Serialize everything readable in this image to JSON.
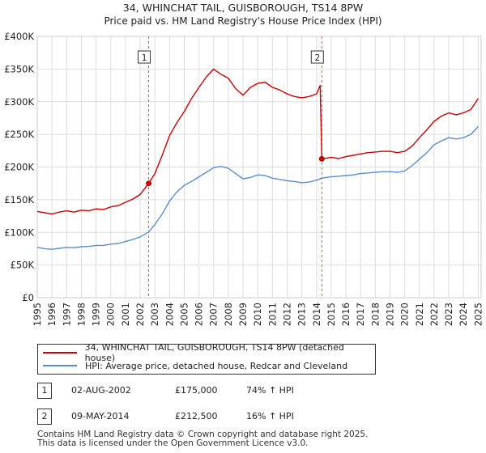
{
  "chart_data": {
    "type": "line",
    "title": "34, WHINCHAT TAIL, GUISBOROUGH, TS14 8PW",
    "subtitle": "Price paid vs. HM Land Registry's House Price Index (HPI)",
    "xlim": [
      1995,
      2025.2
    ],
    "ylim": [
      0,
      400000
    ],
    "y_ticks": [
      0,
      50000,
      100000,
      150000,
      200000,
      250000,
      300000,
      350000,
      400000
    ],
    "y_tick_labels": [
      "£0",
      "£50K",
      "£100K",
      "£150K",
      "£200K",
      "£250K",
      "£300K",
      "£350K",
      "£400K"
    ],
    "x_ticks": [
      1995,
      1996,
      1997,
      1998,
      1999,
      2000,
      2001,
      2002,
      2003,
      2004,
      2005,
      2006,
      2007,
      2008,
      2009,
      2010,
      2011,
      2012,
      2013,
      2014,
      2015,
      2016,
      2017,
      2018,
      2019,
      2020,
      2021,
      2022,
      2023,
      2024,
      2025
    ],
    "x_tick_labels": [
      "1995",
      "1996",
      "1997",
      "1998",
      "1999",
      "2000",
      "2001",
      "2002",
      "2003",
      "2004",
      "2005",
      "2006",
      "2007",
      "2008",
      "2009",
      "2010",
      "2011",
      "2012",
      "2013",
      "2014",
      "2015",
      "2016",
      "2017",
      "2018",
      "2019",
      "2020",
      "2021",
      "2022",
      "2023",
      "2024",
      "2025"
    ],
    "grid": true,
    "series": [
      {
        "name": "34, WHINCHAT TAIL, GUISBOROUGH, TS14 8PW (detached house)",
        "color": "#cc0000",
        "points": [
          [
            1995,
            132000
          ],
          [
            1995.5,
            130000
          ],
          [
            1996,
            128000
          ],
          [
            1996.5,
            131000
          ],
          [
            1997,
            133000
          ],
          [
            1997.5,
            131000
          ],
          [
            1998,
            134000
          ],
          [
            1998.5,
            133000
          ],
          [
            1999,
            136000
          ],
          [
            1999.5,
            135000
          ],
          [
            2000,
            139000
          ],
          [
            2000.5,
            141000
          ],
          [
            2001,
            146000
          ],
          [
            2001.5,
            151000
          ],
          [
            2002,
            158000
          ],
          [
            2002.58,
            175000
          ],
          [
            2003,
            190000
          ],
          [
            2003.5,
            218000
          ],
          [
            2004,
            248000
          ],
          [
            2004.5,
            268000
          ],
          [
            2005,
            285000
          ],
          [
            2005.5,
            305000
          ],
          [
            2006,
            322000
          ],
          [
            2006.5,
            338000
          ],
          [
            2007,
            350000
          ],
          [
            2007.5,
            342000
          ],
          [
            2008,
            336000
          ],
          [
            2008.5,
            320000
          ],
          [
            2009,
            310000
          ],
          [
            2009.5,
            322000
          ],
          [
            2010,
            328000
          ],
          [
            2010.5,
            330000
          ],
          [
            2011,
            322000
          ],
          [
            2011.5,
            318000
          ],
          [
            2012,
            312000
          ],
          [
            2012.5,
            308000
          ],
          [
            2013,
            306000
          ],
          [
            2013.5,
            308000
          ],
          [
            2014,
            312000
          ],
          [
            2014.25,
            325000
          ],
          [
            2014.36,
            212500
          ],
          [
            2015,
            215000
          ],
          [
            2015.5,
            213000
          ],
          [
            2016,
            216000
          ],
          [
            2016.5,
            218000
          ],
          [
            2017,
            220000
          ],
          [
            2017.5,
            222000
          ],
          [
            2018,
            223000
          ],
          [
            2018.5,
            224000
          ],
          [
            2019,
            224000
          ],
          [
            2019.5,
            222000
          ],
          [
            2020,
            224000
          ],
          [
            2020.5,
            232000
          ],
          [
            2021,
            245000
          ],
          [
            2021.5,
            257000
          ],
          [
            2022,
            270000
          ],
          [
            2022.5,
            278000
          ],
          [
            2023,
            283000
          ],
          [
            2023.5,
            280000
          ],
          [
            2024,
            283000
          ],
          [
            2024.5,
            288000
          ],
          [
            2025,
            305000
          ]
        ]
      },
      {
        "name": "HPI: Average price, detached house, Redcar and Cleveland",
        "color": "#5b8fc9",
        "points": [
          [
            1995,
            77000
          ],
          [
            1995.5,
            75000
          ],
          [
            1996,
            74000
          ],
          [
            1996.5,
            75500
          ],
          [
            1997,
            77000
          ],
          [
            1997.5,
            76500
          ],
          [
            1998,
            78000
          ],
          [
            1998.5,
            78500
          ],
          [
            1999,
            80000
          ],
          [
            1999.5,
            80000
          ],
          [
            2000,
            82000
          ],
          [
            2000.5,
            83000
          ],
          [
            2001,
            86000
          ],
          [
            2001.5,
            89000
          ],
          [
            2002,
            93000
          ],
          [
            2002.58,
            100500
          ],
          [
            2003,
            112000
          ],
          [
            2003.5,
            128000
          ],
          [
            2004,
            148000
          ],
          [
            2004.5,
            162000
          ],
          [
            2005,
            172000
          ],
          [
            2005.5,
            178000
          ],
          [
            2006,
            185000
          ],
          [
            2006.5,
            192000
          ],
          [
            2007,
            199000
          ],
          [
            2007.5,
            201000
          ],
          [
            2008,
            198000
          ],
          [
            2008.5,
            190000
          ],
          [
            2009,
            182000
          ],
          [
            2009.5,
            184000
          ],
          [
            2010,
            188000
          ],
          [
            2010.5,
            187000
          ],
          [
            2011,
            183000
          ],
          [
            2011.5,
            181000
          ],
          [
            2012,
            179000
          ],
          [
            2012.5,
            178000
          ],
          [
            2013,
            176000
          ],
          [
            2013.5,
            177000
          ],
          [
            2014,
            180000
          ],
          [
            2014.36,
            183000
          ],
          [
            2015,
            185000
          ],
          [
            2015.5,
            186000
          ],
          [
            2016,
            187000
          ],
          [
            2016.5,
            188000
          ],
          [
            2017,
            190000
          ],
          [
            2017.5,
            191000
          ],
          [
            2018,
            192000
          ],
          [
            2018.5,
            193000
          ],
          [
            2019,
            193000
          ],
          [
            2019.5,
            192000
          ],
          [
            2020,
            194000
          ],
          [
            2020.5,
            202000
          ],
          [
            2021,
            212000
          ],
          [
            2021.5,
            222000
          ],
          [
            2022,
            234000
          ],
          [
            2022.5,
            240000
          ],
          [
            2023,
            245000
          ],
          [
            2023.5,
            243000
          ],
          [
            2024,
            245000
          ],
          [
            2024.5,
            250000
          ],
          [
            2025,
            262000
          ]
        ]
      }
    ],
    "sales": [
      {
        "num": "1",
        "x": 2002.58,
        "value": 175000
      },
      {
        "num": "2",
        "x": 2014.36,
        "value": 212500
      }
    ]
  },
  "legend": {
    "line1": "34, WHINCHAT TAIL, GUISBOROUGH, TS14 8PW (detached house)",
    "line2": "HPI: Average price, detached house, Redcar and Cleveland",
    "color1": "#cc0000",
    "color2": "#5b8fc9"
  },
  "sales_table": [
    {
      "num": "1",
      "date": "02-AUG-2002",
      "price": "£175,000",
      "hpi": "74% ↑ HPI"
    },
    {
      "num": "2",
      "date": "09-MAY-2014",
      "price": "£212,500",
      "hpi": "16% ↑ HPI"
    }
  ],
  "footer": {
    "line1": "Contains HM Land Registry data © Crown copyright and database right 2025.",
    "line2": "This data is licensed under the Open Government Licence v3.0."
  }
}
